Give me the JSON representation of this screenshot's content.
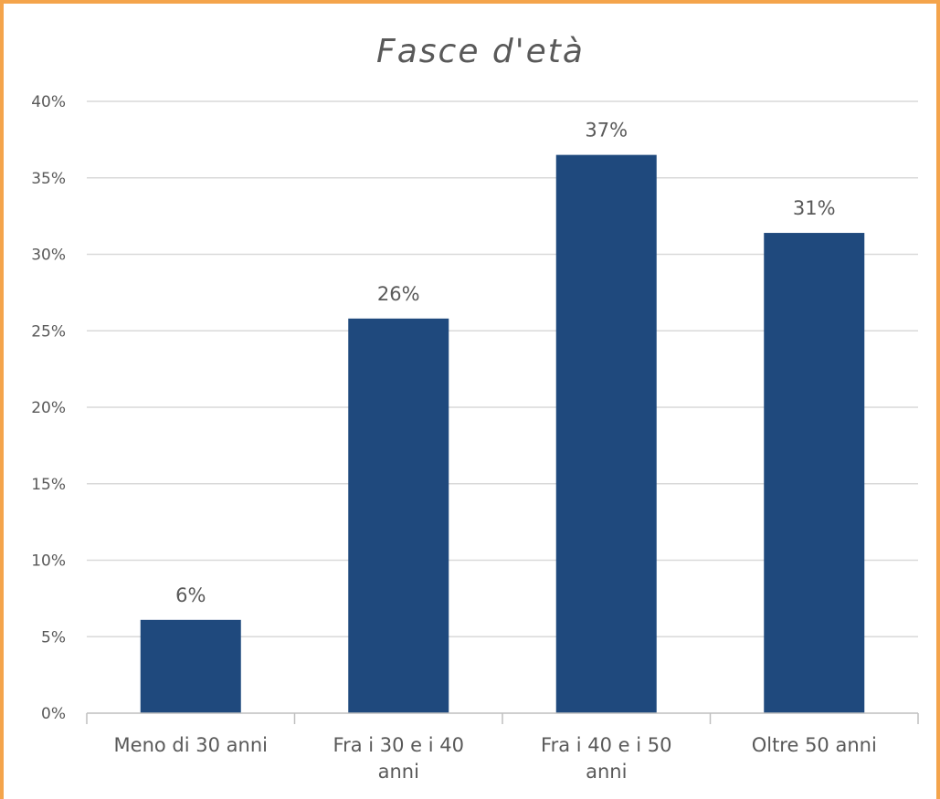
{
  "chart_data": {
    "type": "bar",
    "title": "Fasce d'età",
    "categories": [
      "Meno di 30 anni",
      "Fra i 30 e i 40 anni",
      "Fra i 40 e i 50 anni",
      "Oltre 50 anni"
    ],
    "category_lines": [
      [
        "Meno di 30 anni"
      ],
      [
        "Fra i 30 e i 40",
        "anni"
      ],
      [
        "Fra i 40 e i 50",
        "anni"
      ],
      [
        "Oltre 50 anni"
      ]
    ],
    "values": [
      6.1,
      25.8,
      36.5,
      31.4
    ],
    "data_labels": [
      "6%",
      "26%",
      "37%",
      "31%"
    ],
    "y_ticks": [
      0,
      5,
      10,
      15,
      20,
      25,
      30,
      35,
      40
    ],
    "y_tick_labels": [
      "0%",
      "5%",
      "10%",
      "15%",
      "20%",
      "25%",
      "30%",
      "35%",
      "40%"
    ],
    "ylim": [
      0,
      40
    ],
    "grid": true,
    "bar_color": "#1f497d",
    "grid_color": "#d9d9d9",
    "axis_color": "#bfbfbf",
    "border_color": "#f4a44b"
  }
}
